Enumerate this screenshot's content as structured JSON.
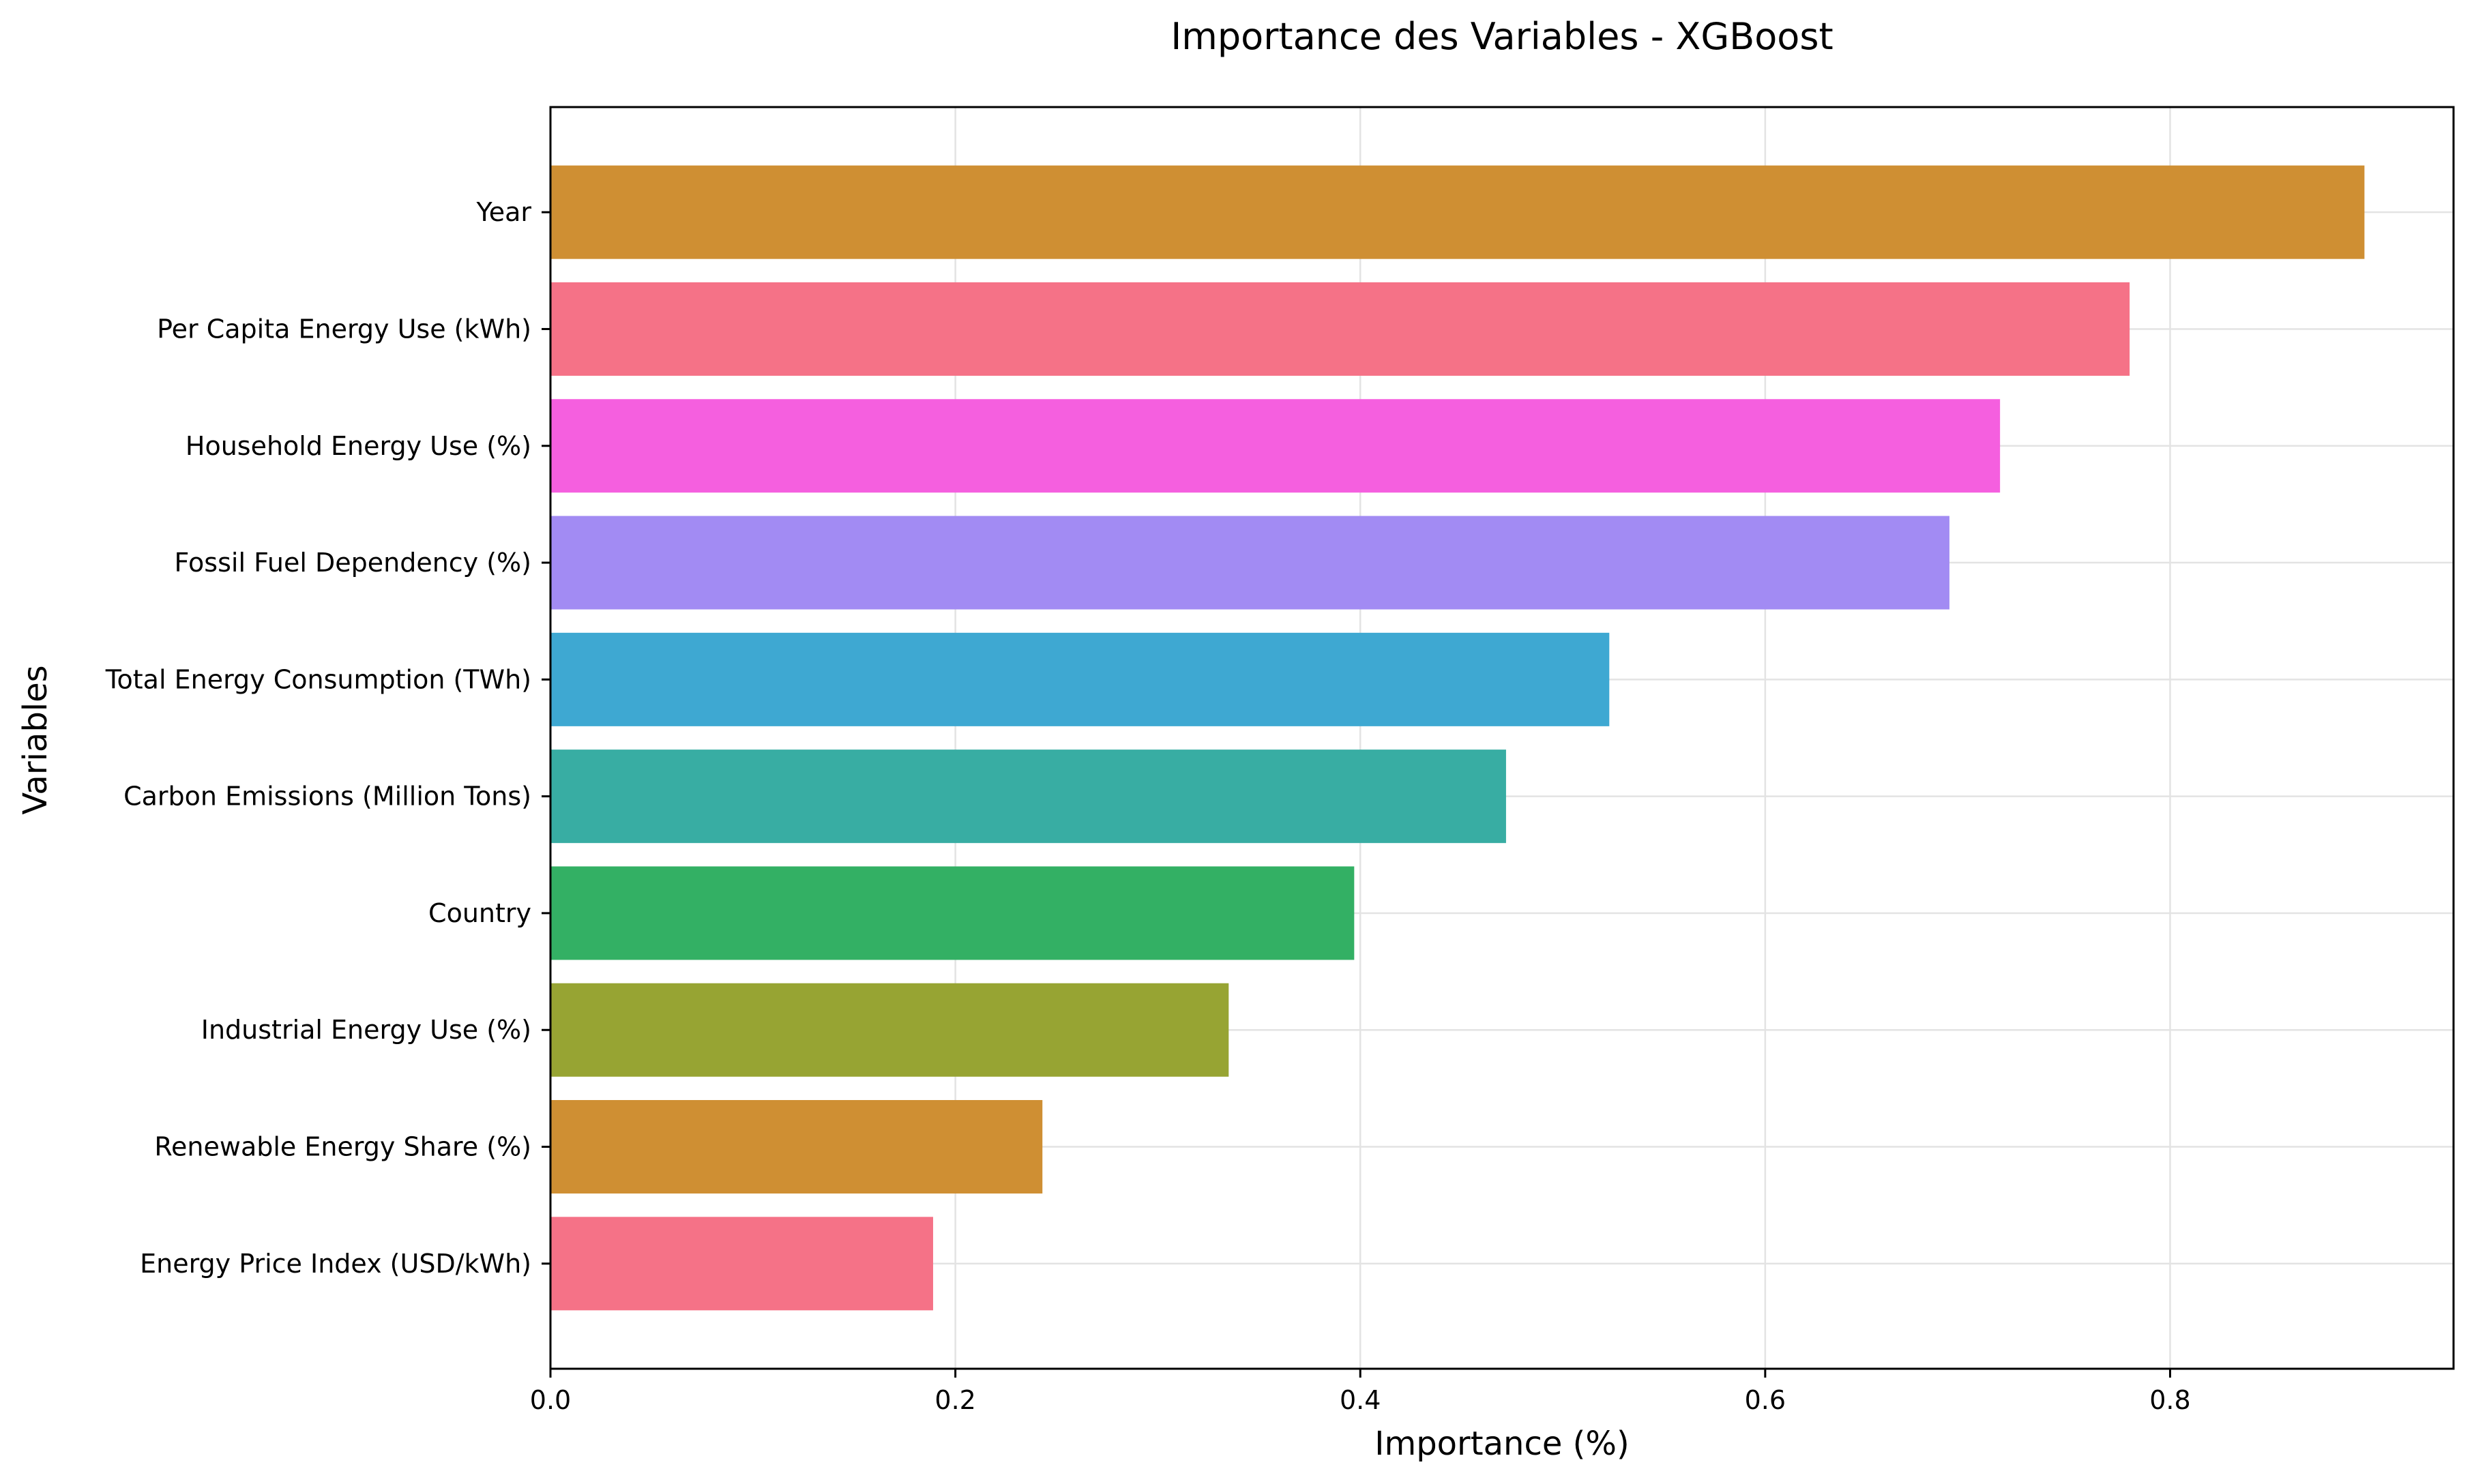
{
  "chart_data": {
    "type": "bar",
    "orientation": "horizontal",
    "title": "Importance des Variables - XGBoost",
    "xlabel": "Importance (%)",
    "ylabel": "Variables",
    "categories": [
      "Year",
      "Per Capita Energy Use (kWh)",
      "Household Energy Use (%)",
      "Fossil Fuel Dependency (%)",
      "Total Energy Consumption (TWh)",
      "Carbon Emissions (Million Tons)",
      "Country",
      "Industrial Energy Use (%)",
      "Renewable Energy Share (%)",
      "Energy Price Index (USD/kWh)"
    ],
    "values": [
      0.896,
      0.78,
      0.716,
      0.691,
      0.523,
      0.472,
      0.397,
      0.335,
      0.243,
      0.189
    ],
    "colors": [
      "#cf8f33",
      "#f57287",
      "#f55fdf",
      "#a28bf3",
      "#3ea8d2",
      "#38ada3",
      "#33b064",
      "#97a433",
      "#cf8f33",
      "#f57287"
    ],
    "xlim": [
      0,
      0.94
    ],
    "xticks": [
      0.0,
      0.2,
      0.4,
      0.6,
      0.8
    ],
    "xtick_labels": [
      "0.0",
      "0.2",
      "0.4",
      "0.6",
      "0.8"
    ],
    "grid": true,
    "legend": "none"
  }
}
